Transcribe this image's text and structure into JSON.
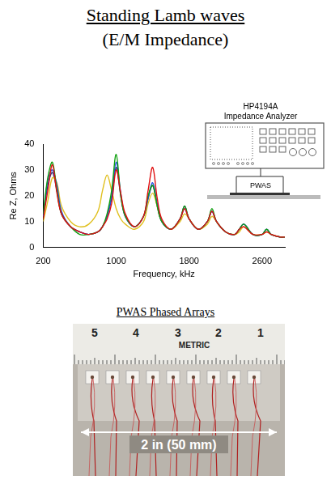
{
  "header": {
    "title": "Standing Lamb waves",
    "subtitle": "(E/M Impedance)"
  },
  "chart_data": {
    "type": "line",
    "x_label": "Frequency, kHz",
    "y_label": "Re Z, Ohms",
    "x": [
      200,
      250,
      300,
      350,
      400,
      500,
      600,
      700,
      800,
      850,
      900,
      950,
      1000,
      1050,
      1100,
      1200,
      1300,
      1350,
      1400,
      1450,
      1500,
      1600,
      1700,
      1750,
      1800,
      1900,
      2000,
      2050,
      2100,
      2200,
      2300,
      2350,
      2400,
      2500,
      2600,
      2650,
      2700,
      2800,
      2850
    ],
    "series": [
      {
        "color": "#e01010",
        "values": [
          11,
          22,
          32,
          21,
          13,
          8,
          6,
          5,
          6,
          8,
          11,
          17,
          30,
          21,
          13,
          8,
          12,
          22,
          31,
          19,
          11,
          7,
          11,
          15,
          11,
          7,
          10,
          14,
          10,
          6,
          5,
          7,
          8,
          5,
          5,
          6,
          5,
          4,
          4
        ]
      },
      {
        "color": "#10a010",
        "values": [
          13,
          27,
          33,
          22,
          13,
          8,
          5,
          5,
          6,
          8,
          13,
          22,
          36,
          20,
          12,
          8,
          12,
          20,
          24,
          16,
          10,
          7,
          11,
          16,
          11,
          7,
          10,
          15,
          10,
          6,
          5,
          7,
          9,
          5,
          5,
          7,
          5,
          4,
          4
        ]
      },
      {
        "color": "#2050e0",
        "values": [
          12,
          26,
          30,
          24,
          14,
          8,
          6,
          5,
          6,
          8,
          12,
          20,
          33,
          21,
          12,
          8,
          12,
          19,
          25,
          17,
          10,
          7,
          11,
          15,
          11,
          7,
          10,
          14,
          10,
          6,
          5,
          7,
          9,
          5,
          5,
          7,
          5,
          4,
          4
        ]
      },
      {
        "color": "#e0c020",
        "values": [
          10,
          18,
          27,
          25,
          16,
          10,
          8,
          9,
          14,
          22,
          28,
          22,
          15,
          11,
          9,
          7,
          10,
          17,
          21,
          16,
          10,
          7,
          10,
          13,
          11,
          7,
          9,
          12,
          10,
          6,
          5,
          6,
          8,
          5,
          5,
          6,
          5,
          4,
          4
        ]
      },
      {
        "color": "#30307a",
        "values": [
          12,
          24,
          29,
          22,
          13,
          8,
          6,
          5,
          6,
          8,
          12,
          19,
          31,
          20,
          12,
          8,
          12,
          19,
          24,
          16,
          10,
          7,
          11,
          16,
          11,
          7,
          10,
          14,
          10,
          6,
          5,
          7,
          9,
          5,
          5,
          7,
          5,
          4,
          4
        ]
      }
    ],
    "xlim": [
      200,
      2850
    ],
    "xticks": [
      200,
      1000,
      1800,
      2600
    ],
    "ylim": [
      0,
      40
    ],
    "yticks": [
      0,
      10,
      20,
      30,
      40
    ],
    "grid": false
  },
  "instrument": {
    "model": "HP4194A",
    "name": "Impedance Analyzer",
    "sensor": "PWAS"
  },
  "photo": {
    "title": "PWAS Phased Arrays",
    "ruler_label": "METRIC",
    "ruler_numbers": [
      5,
      4,
      3,
      2,
      1
    ],
    "dimension": "2 in (50 mm)"
  }
}
